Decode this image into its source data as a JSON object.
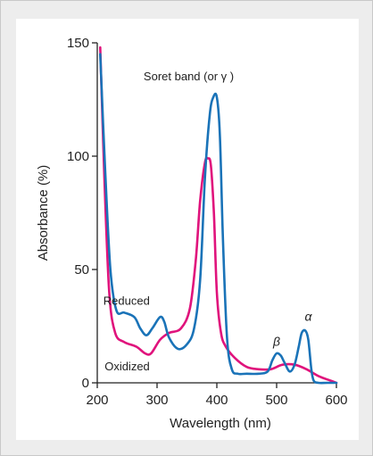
{
  "chart_data": {
    "type": "line",
    "xlabel": "Wavelength (nm)",
    "ylabel": "Absorbance (%)",
    "xlim": [
      200,
      600
    ],
    "ylim": [
      0,
      150
    ],
    "x_ticks": [
      200,
      300,
      400,
      500,
      600
    ],
    "y_ticks": [
      0,
      50,
      100,
      150
    ],
    "x_tick_labels": [
      "200",
      "300",
      "400",
      "500",
      "600"
    ],
    "y_tick_labels": [
      "0",
      "50",
      "100",
      "150"
    ],
    "grid": false,
    "series": [
      {
        "name": "Reduced",
        "color": "#1a73b8",
        "x": [
          205,
          213,
          222,
          232,
          245,
          262,
          272,
          282,
          292,
          305,
          312,
          320,
          335,
          350,
          362,
          372,
          380,
          388,
          394,
          400,
          405,
          410,
          417,
          425,
          435,
          450,
          470,
          485,
          493,
          500,
          507,
          513,
          522,
          530,
          537,
          542,
          548,
          553,
          558,
          562,
          570,
          585,
          600
        ],
        "y": [
          145,
          95,
          50,
          32,
          31,
          29,
          24,
          21,
          24,
          29,
          27,
          20,
          15,
          17,
          24,
          45,
          90,
          118,
          126,
          126,
          110,
          65,
          20,
          6,
          4,
          4,
          4,
          5,
          10,
          13,
          12,
          9,
          5,
          8,
          16,
          22,
          23,
          19,
          6,
          1,
          0,
          0,
          0
        ]
      },
      {
        "name": "Oxidized",
        "color": "#e0137c",
        "x": [
          205,
          212,
          220,
          230,
          245,
          265,
          280,
          290,
          305,
          320,
          340,
          355,
          365,
          372,
          380,
          385,
          390,
          395,
          400,
          407,
          415,
          430,
          450,
          470,
          490,
          510,
          530,
          550,
          570,
          590,
          600
        ],
        "y": [
          148,
          90,
          40,
          22,
          18,
          16,
          13,
          13,
          19,
          22,
          24,
          33,
          55,
          80,
          97,
          99,
          96,
          75,
          40,
          22,
          16,
          11,
          7,
          6,
          6,
          8,
          8,
          6,
          3,
          1,
          0
        ]
      }
    ],
    "annotations": [
      {
        "text": "Soret band (or γ )",
        "x": 353,
        "y": 135
      },
      {
        "text": "Reduced",
        "x": 249,
        "y": 36
      },
      {
        "text": "Oxidized",
        "x": 250,
        "y": 7
      },
      {
        "text": "β",
        "x": 500,
        "y": 18
      },
      {
        "text": "α",
        "x": 553,
        "y": 29
      }
    ]
  }
}
